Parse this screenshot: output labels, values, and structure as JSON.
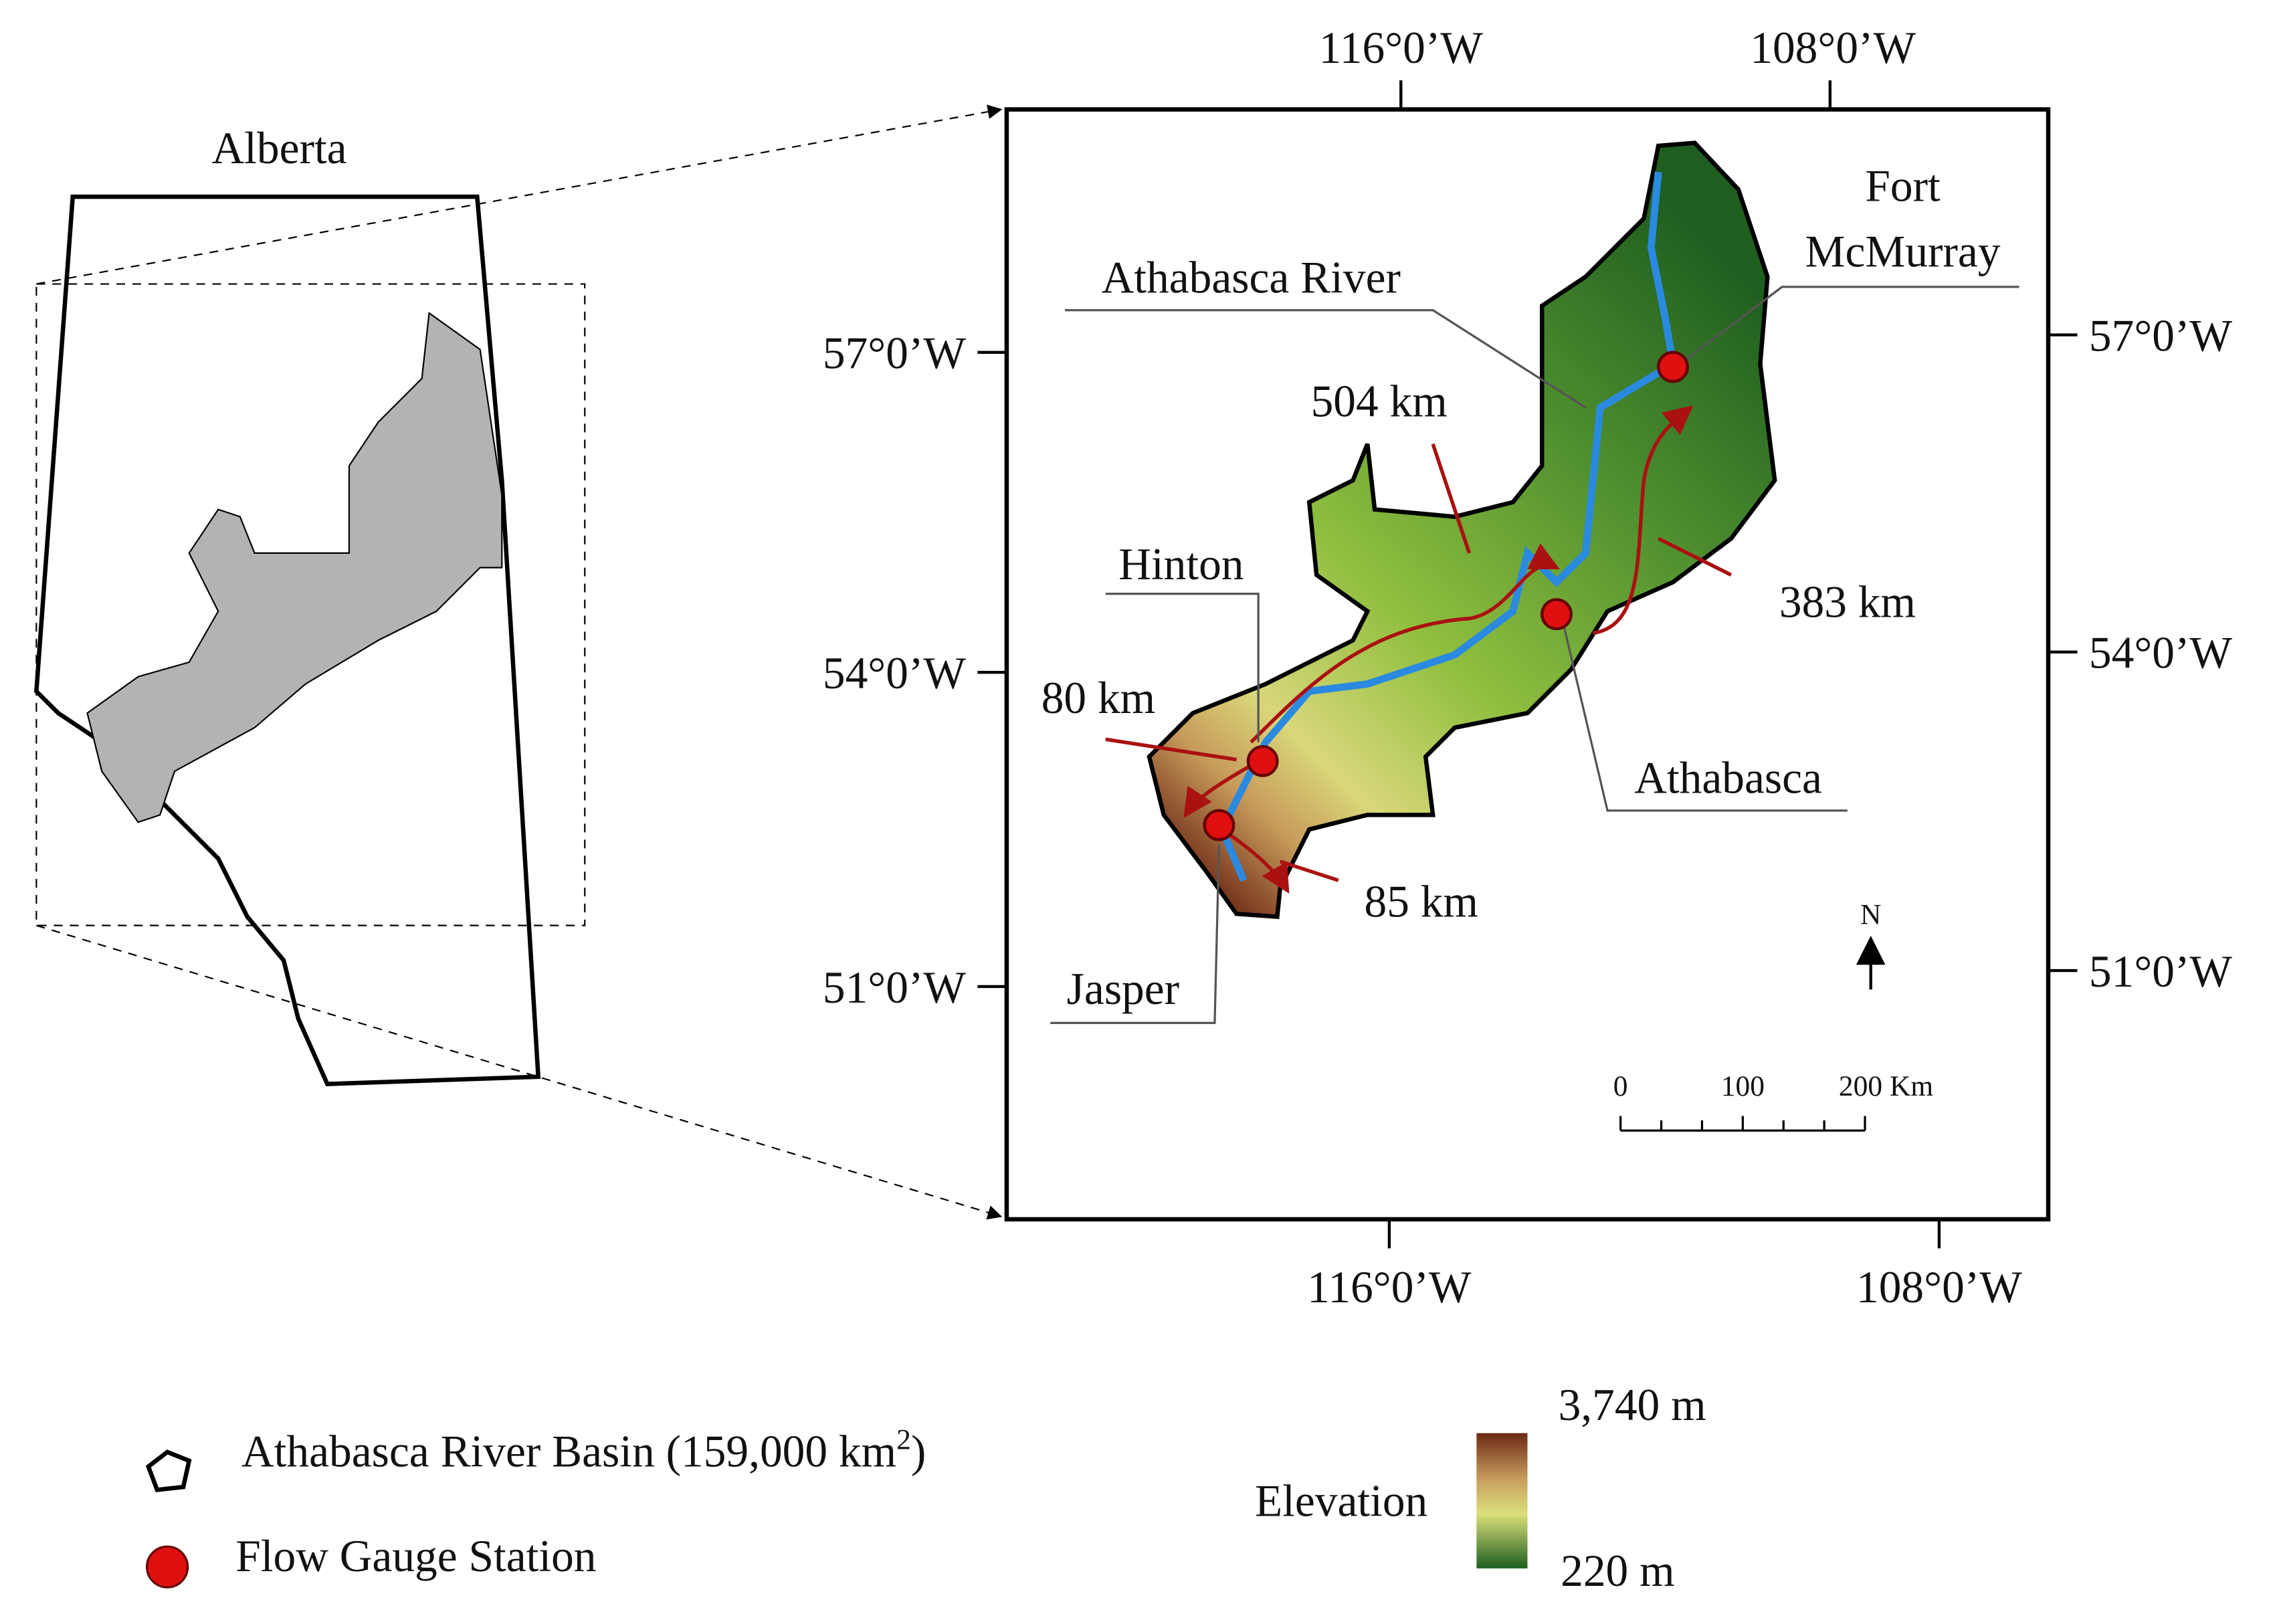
{
  "inset": {
    "title": "Alberta"
  },
  "map": {
    "top_ticks": [
      "116°0’W",
      "108°0’W"
    ],
    "bottom_ticks": [
      "116°0’W",
      "108°0’W"
    ],
    "left_ticks": [
      "57°0’W",
      "54°0’W",
      "51°0’W"
    ],
    "right_ticks": [
      "57°0’W",
      "54°0’W",
      "51°0’W"
    ],
    "river_label": "Athabasca River",
    "places": [
      {
        "lines": [
          "Fort",
          "McMurray"
        ]
      },
      {
        "lines": [
          "Athabasca"
        ]
      },
      {
        "lines": [
          "Hinton"
        ]
      },
      {
        "lines": [
          "Jasper"
        ]
      }
    ],
    "distances": [
      "504 km",
      "383 km",
      "80 km",
      "85 km"
    ],
    "north": "N",
    "scale_bar": [
      "0",
      "100",
      "200 Km"
    ]
  },
  "legend": {
    "basin": {
      "text": "Athabasca River Basin (159,000 km",
      "sup": "2",
      "end": ")"
    },
    "gauge": "Flow Gauge Station",
    "elevation": {
      "title": "Elevation",
      "max": "3,740 m",
      "min": "220 m"
    }
  }
}
